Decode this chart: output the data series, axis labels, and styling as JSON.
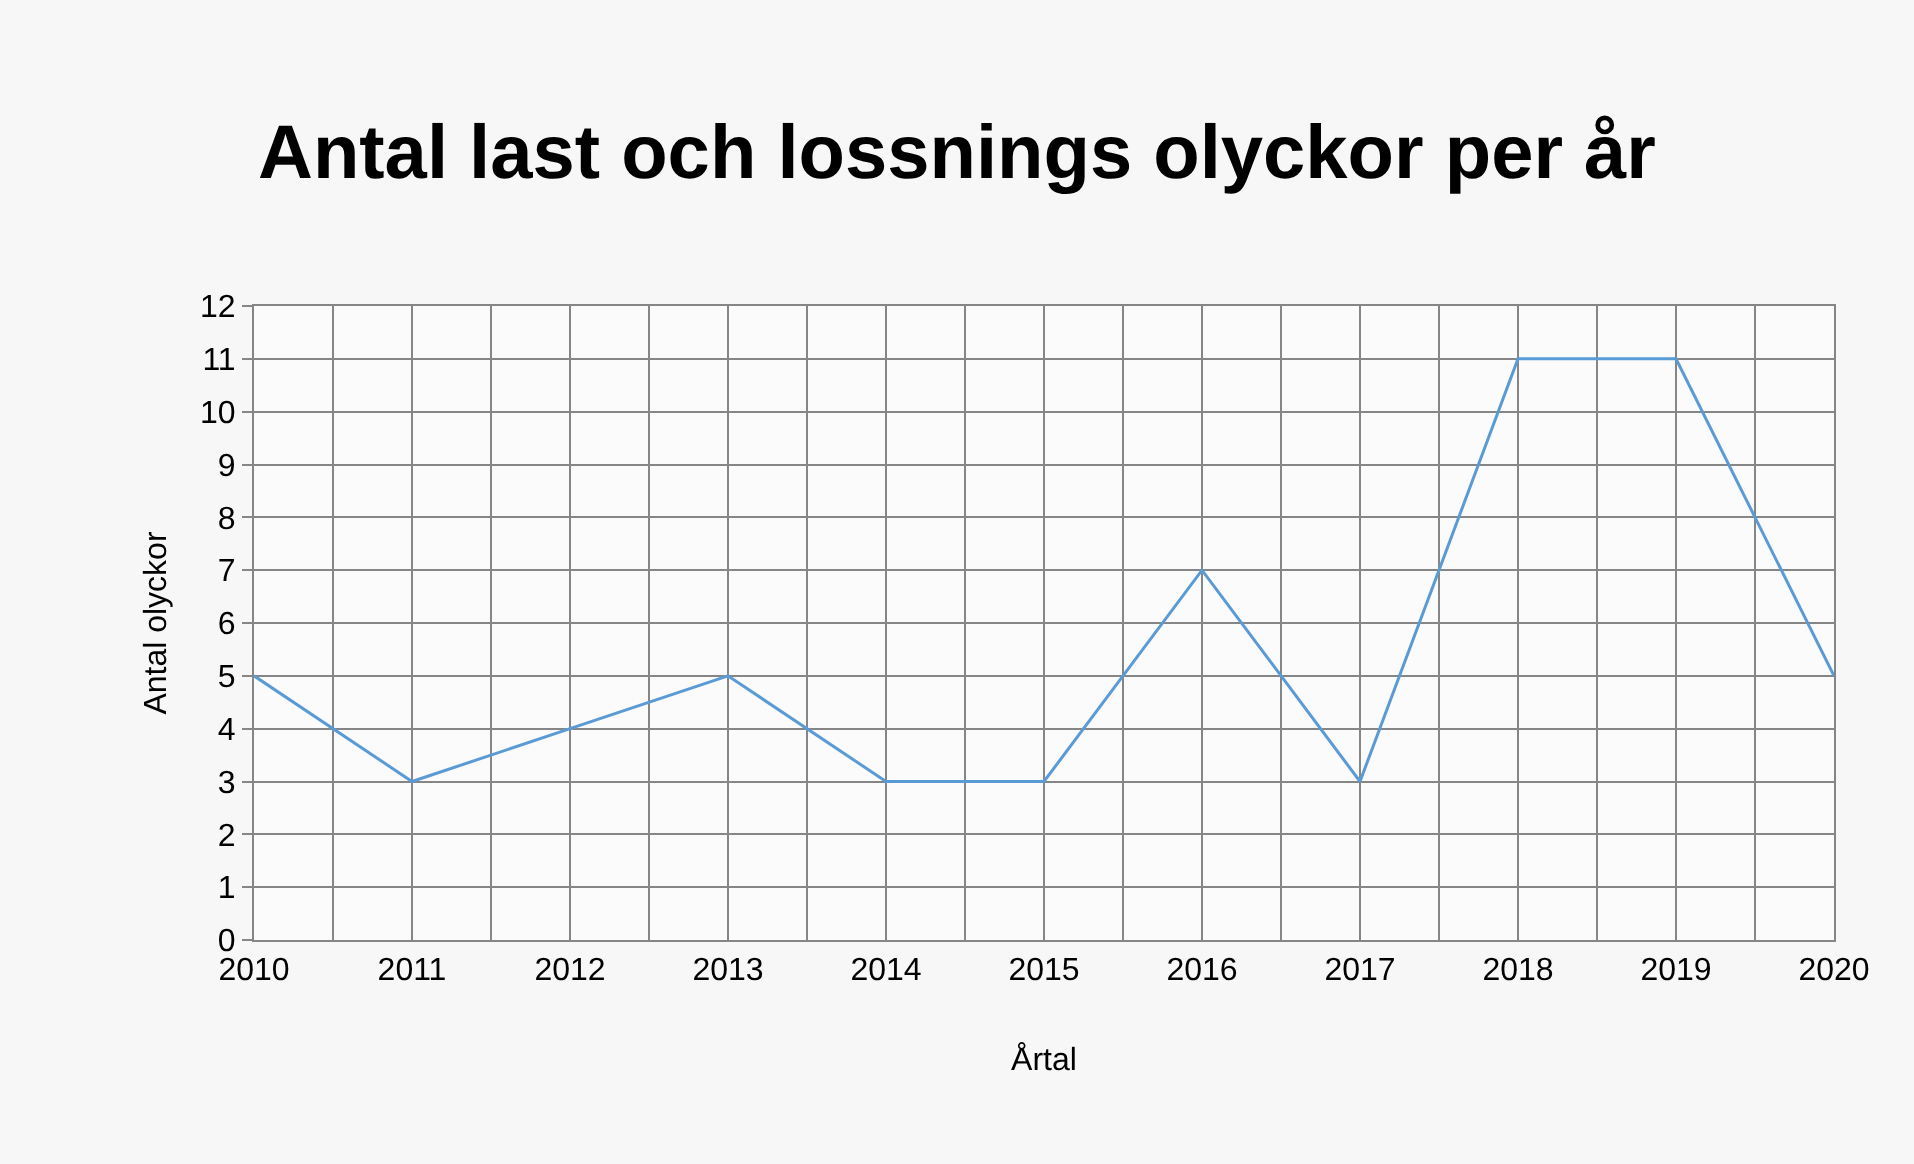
{
  "chart_data": {
    "type": "line",
    "title": "Antal last och lossnings olyckor per år",
    "xlabel": "Årtal",
    "ylabel": "Antal olyckor",
    "x": [
      2010,
      2011,
      2012,
      2013,
      2014,
      2015,
      2016,
      2017,
      2018,
      2019,
      2020
    ],
    "series": [
      {
        "color": "#5b9bd5",
        "values": [
          5,
          3,
          4,
          5,
          3,
          3,
          7,
          3,
          11,
          11,
          5
        ]
      }
    ],
    "xlim": [
      2010,
      2020
    ],
    "xticks": [
      2010,
      {
        "value": 2010.5,
        "label": null
      },
      2011,
      {
        "value": 2011.5,
        "label": null
      },
      2012,
      {
        "value": 2012.5,
        "label": null
      },
      2013,
      {
        "value": 2013.5,
        "label": null
      },
      2014,
      {
        "value": 2014.5,
        "label": null
      },
      2015,
      {
        "value": 2015.5,
        "label": null
      },
      2016,
      {
        "value": 2016.5,
        "label": null
      },
      2017,
      {
        "value": 2017.5,
        "label": null
      },
      2018,
      {
        "value": 2018.5,
        "label": null
      },
      2019,
      {
        "value": 2019.5,
        "label": null
      },
      2020
    ],
    "ylim": [
      0,
      12
    ],
    "yticks": [
      0,
      1,
      2,
      3,
      4,
      5,
      6,
      7,
      8,
      9,
      10,
      11,
      12
    ],
    "grid": true,
    "marker": "none",
    "line_style": "solid"
  }
}
